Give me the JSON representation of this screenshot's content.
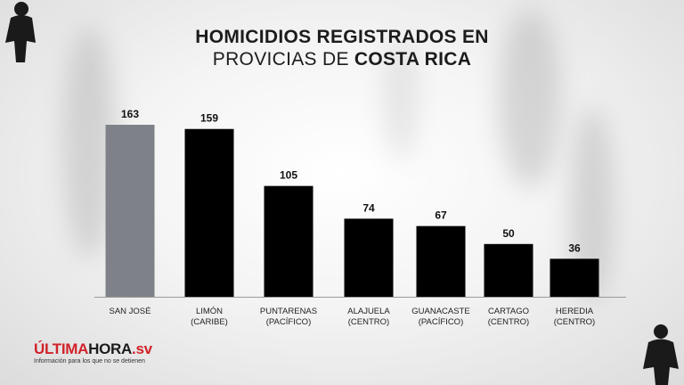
{
  "title": {
    "line1": "HOMICIDIOS REGISTRADOS EN",
    "line2_prefix": "PROVICIAS DE ",
    "line2_bold": "COSTA RICA"
  },
  "chart_data": {
    "type": "bar",
    "categories": [
      [
        "SAN JOSÉ"
      ],
      [
        "LIMÓN",
        "(CARIBE)"
      ],
      [
        "PUNTARENAS",
        "(PACÍFICO)"
      ],
      [
        "ALAJUELA",
        "(CENTRO)"
      ],
      [
        "GUANACASTE",
        "(PACÍFICO)"
      ],
      [
        "CARTAGO",
        "(CENTRO)"
      ],
      [
        "HEREDIA",
        "(CENTRO)"
      ]
    ],
    "values": [
      163,
      159,
      105,
      74,
      67,
      50,
      36
    ],
    "bar_colors": [
      "#7e8288",
      "#000000",
      "#000000",
      "#000000",
      "#000000",
      "#000000",
      "#000000"
    ],
    "title": "HOMICIDIOS REGISTRADOS EN PROVICIAS DE COSTA RICA",
    "xlabel": "",
    "ylabel": "",
    "ylim": [
      0,
      163
    ],
    "grid": false,
    "legend": "none"
  },
  "logo": {
    "part1": "ÚLTIMA",
    "part2": "HORA",
    "part3": ".sv",
    "tagline": "Información para los que no se detienen"
  },
  "colors": {
    "accent": "#d1232a",
    "highlight_bar": "#7e8288",
    "bar": "#000000",
    "text": "#1c1c1c"
  }
}
